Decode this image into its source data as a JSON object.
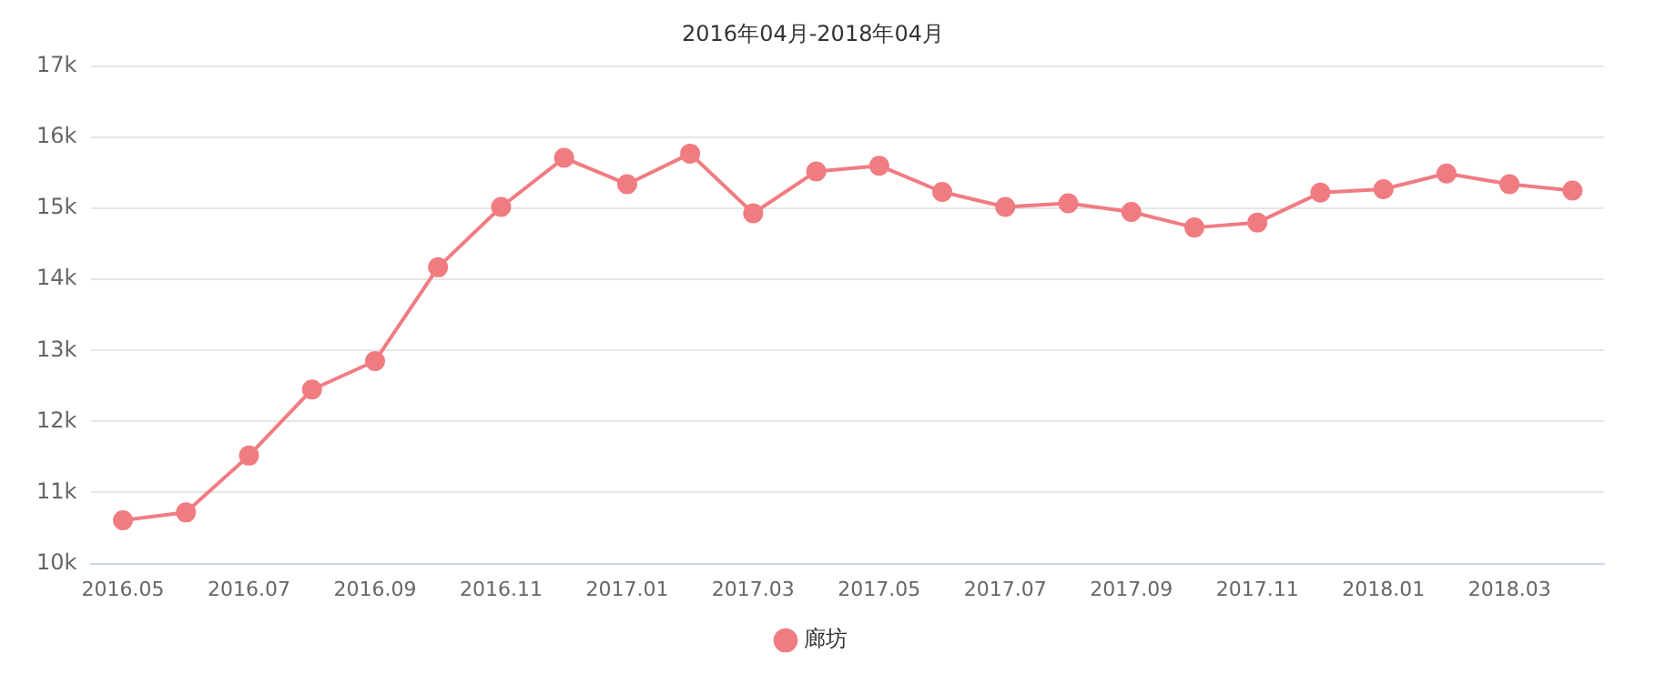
{
  "chart_data": {
    "type": "line",
    "title": "2016年04月-2018年04月",
    "categories": [
      "2016.05",
      null,
      "2016.07",
      null,
      "2016.09",
      null,
      "2016.11",
      null,
      "2017.01",
      null,
      "2017.03",
      null,
      "2017.05",
      null,
      "2017.07",
      null,
      "2017.09",
      null,
      "2017.11",
      null,
      "2018.01",
      null,
      "2018.03",
      null
    ],
    "series": [
      {
        "name": "廊坊",
        "color": "#f07c82",
        "values": [
          10610,
          10720,
          11520,
          12450,
          12850,
          14170,
          15020,
          15710,
          15340,
          15770,
          14930,
          15520,
          15600,
          15230,
          15020,
          15070,
          14950,
          14730,
          14800,
          15220,
          15270,
          15490,
          15340,
          15250
        ]
      }
    ],
    "ylim": [
      10000,
      17000
    ],
    "yticks": [
      {
        "value": 10000,
        "label": "10k"
      },
      {
        "value": 11000,
        "label": "11k"
      },
      {
        "value": 12000,
        "label": "12k"
      },
      {
        "value": 13000,
        "label": "13k"
      },
      {
        "value": 14000,
        "label": "14k"
      },
      {
        "value": 15000,
        "label": "15k"
      },
      {
        "value": 16000,
        "label": "16k"
      },
      {
        "value": 17000,
        "label": "17k"
      }
    ],
    "grid": "y",
    "legend": "bottom",
    "marker": "circle",
    "line_style": "solid"
  }
}
